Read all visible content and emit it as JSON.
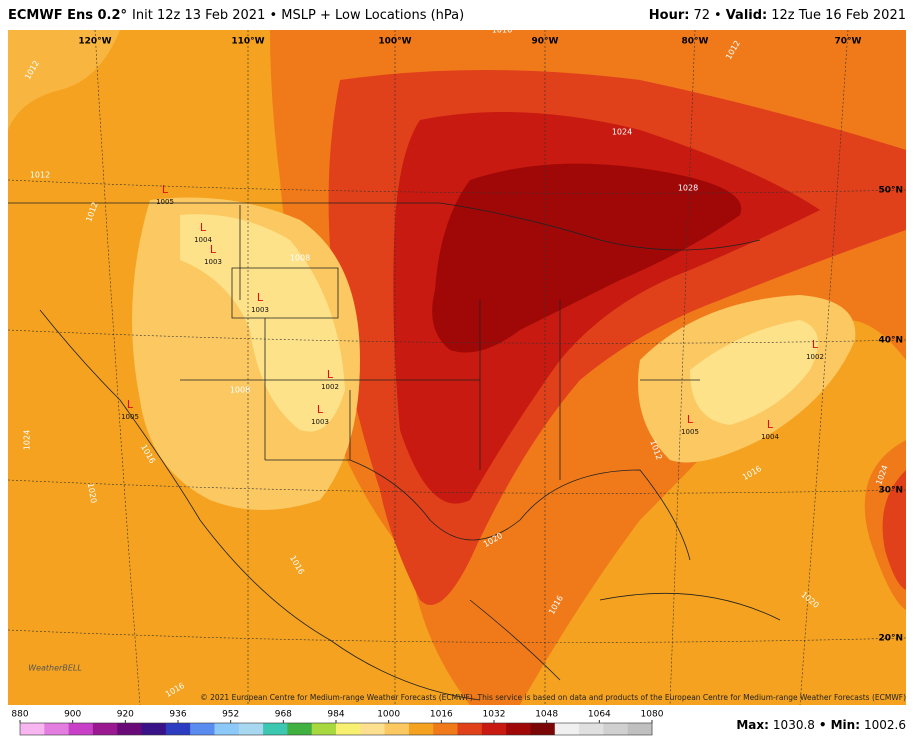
{
  "header": {
    "model": "ECMWF Ens 0.2°",
    "info": "Init 12z 13 Feb 2021 • MSLP + Low Locations (hPa)",
    "hour_label": "Hour:",
    "hour": "72",
    "sep": "•",
    "valid_label": "Valid:",
    "valid": "12z Tue 16 Feb 2021"
  },
  "map": {
    "longitudes": [
      "120°W",
      "110°W",
      "100°W",
      "90°W",
      "80°W",
      "70°W"
    ],
    "latitudes": [
      "50°N",
      "40°N",
      "30°N",
      "20°N"
    ],
    "contours": [
      "1012",
      "1012",
      "1012",
      "1024",
      "1028",
      "1008",
      "1008",
      "1012",
      "1016",
      "1016",
      "1020",
      "1020",
      "1016",
      "1024",
      "1024",
      "1020",
      "1016",
      "1016",
      "1016",
      "1012"
    ],
    "lows": [
      {
        "symbol": "L",
        "pressure": "1005"
      },
      {
        "symbol": "L",
        "pressure": "1004"
      },
      {
        "symbol": "L",
        "pressure": "1003"
      },
      {
        "symbol": "L",
        "pressure": "1003"
      },
      {
        "symbol": "L",
        "pressure": "1005"
      },
      {
        "symbol": "L",
        "pressure": "1002"
      },
      {
        "symbol": "L",
        "pressure": "1003"
      },
      {
        "symbol": "L",
        "pressure": "1005"
      },
      {
        "symbol": "L",
        "pressure": "1004"
      },
      {
        "symbol": "L",
        "pressure": "1002"
      }
    ],
    "copyright": "© 2021 European Centre for Medium-range Weather Forecasts (ECMWF). This service is based on data and products of the European Centre for Medium-range Weather Forecasts (ECMWF)",
    "logo": "WeatherBELL"
  },
  "colorbar": {
    "labels": [
      880,
      900,
      920,
      936,
      952,
      968,
      984,
      1000,
      1016,
      1032,
      1048,
      1064,
      1080
    ],
    "colors": [
      "#f7b6f0",
      "#e37ee0",
      "#c840c8",
      "#9a1890",
      "#6a0a78",
      "#3a1288",
      "#2c3cc0",
      "#5a8cf0",
      "#8cc8f8",
      "#a8d8f0",
      "#3cc8b0",
      "#40b040",
      "#a8d840",
      "#f8f070",
      "#fce090",
      "#fbc862",
      "#f4a21f",
      "#f07a1a",
      "#e0401a",
      "#c81a10",
      "#a00808",
      "#7a0606",
      "#f0f0f0",
      "#e0e0e0",
      "#d0d0d0",
      "#c0c0c0"
    ]
  },
  "footer": {
    "max_label": "Max:",
    "max": "1030.8",
    "sep": "•",
    "min_label": "Min:",
    "min": "1002.6"
  }
}
